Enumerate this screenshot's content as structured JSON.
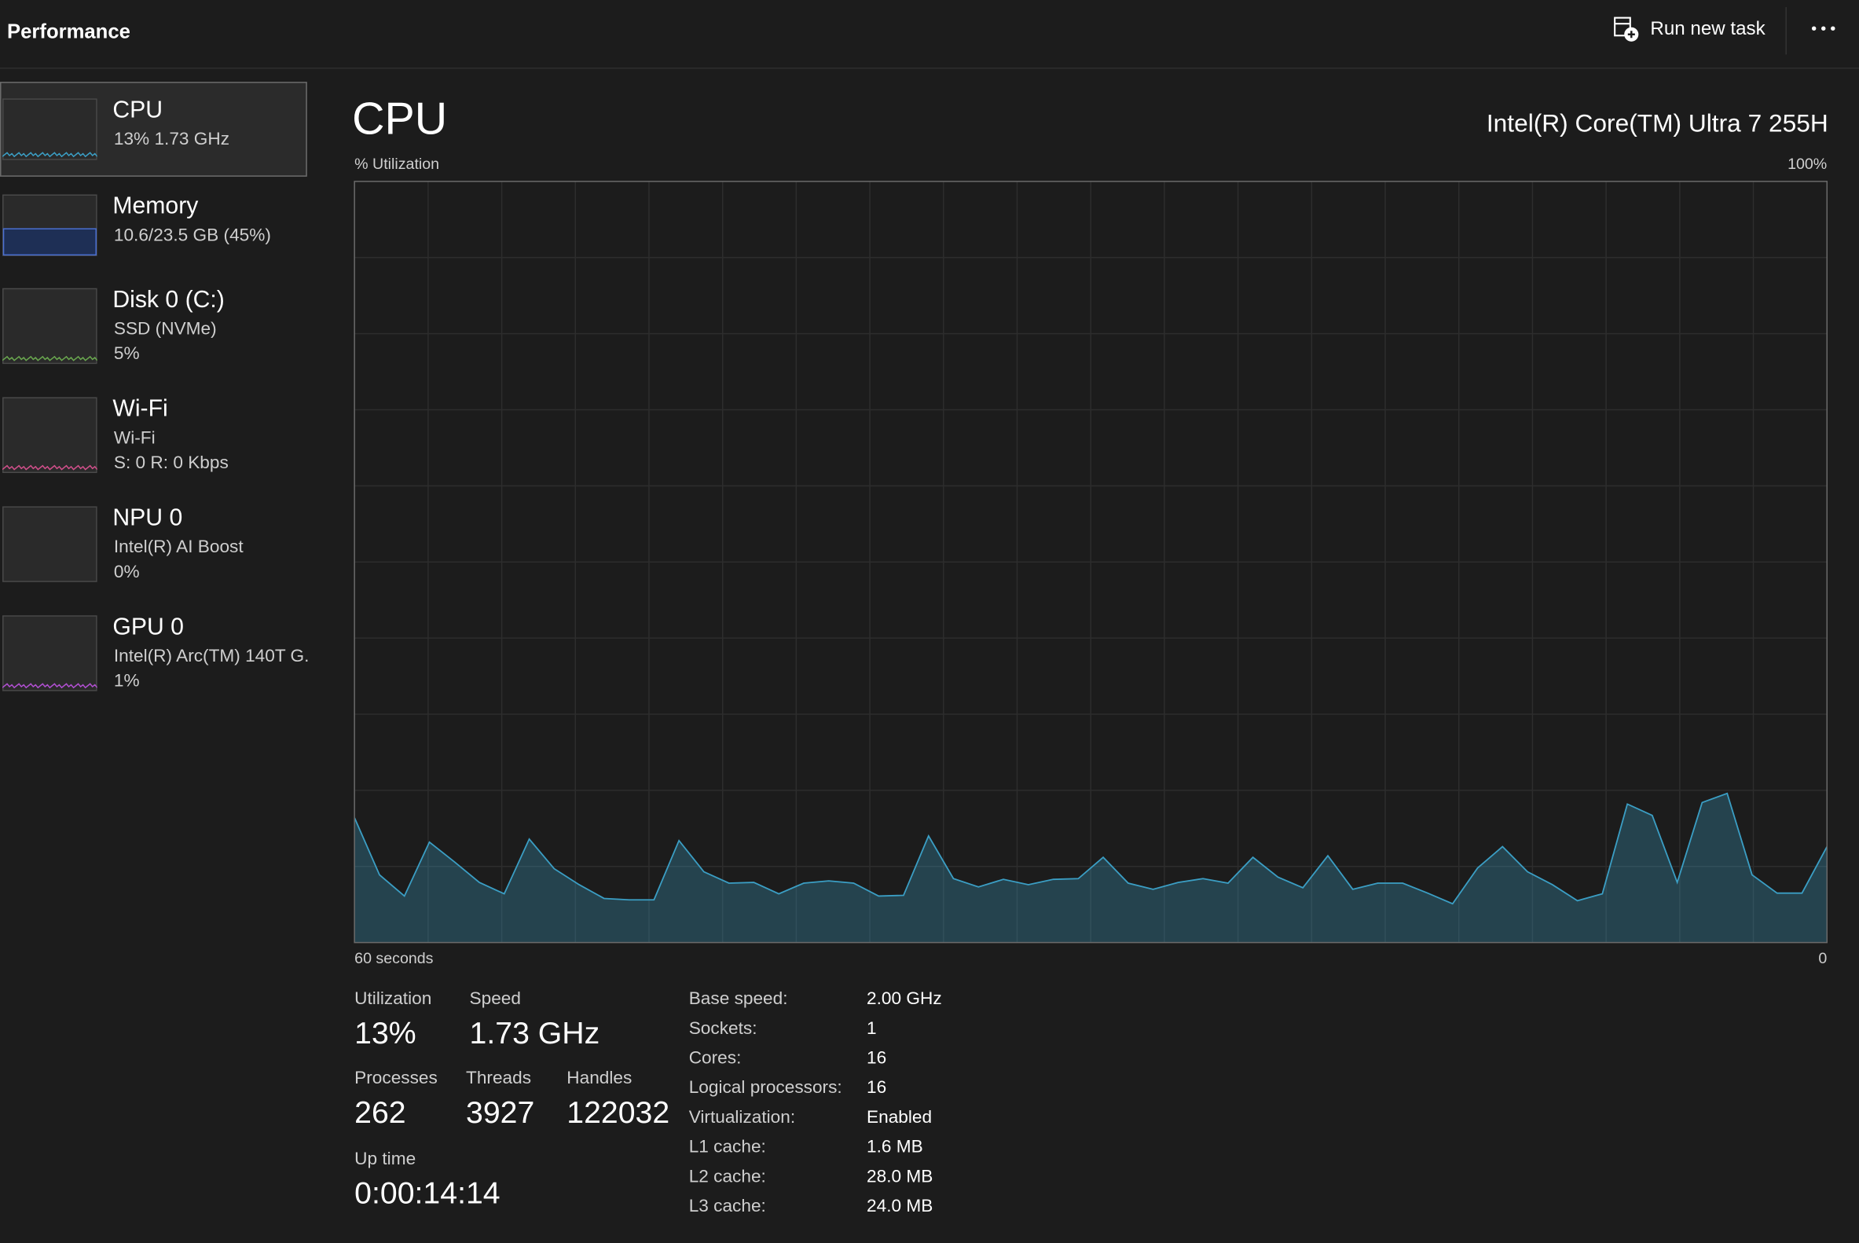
{
  "header": {
    "title": "Performance",
    "run_new_task": "Run new task"
  },
  "sidebar": [
    {
      "name": "CPU",
      "lines": [
        "13%  1.73 GHz"
      ]
    },
    {
      "name": "Memory",
      "lines": [
        "10.6/23.5 GB (45%)"
      ]
    },
    {
      "name": "Disk 0 (C:)",
      "lines": [
        "SSD (NVMe)",
        "5%"
      ]
    },
    {
      "name": "Wi-Fi",
      "lines": [
        "Wi-Fi",
        "S: 0 R: 0 Kbps"
      ]
    },
    {
      "name": "NPU 0",
      "lines": [
        "Intel(R) AI Boost",
        "0%"
      ]
    },
    {
      "name": "GPU 0",
      "lines": [
        "Intel(R) Arc(TM) 140T G.",
        "1%"
      ]
    }
  ],
  "panel": {
    "title": "CPU",
    "model": "Intel(R) Core(TM) Ultra 7 255H"
  },
  "chart_data": {
    "type": "area",
    "ylabel": "% Utilization",
    "color": "#3b9ec4",
    "values": [
      16.4,
      8.9,
      6.1,
      13.2,
      10.6,
      7.9,
      6.4,
      13.6,
      9.7,
      7.6,
      5.8,
      5.6,
      5.6,
      13.4,
      9.3,
      7.8,
      7.9,
      6.4,
      7.8,
      8.1,
      7.8,
      6.1,
      6.2,
      14.0,
      8.4,
      7.3,
      8.3,
      7.6,
      8.3,
      8.4,
      11.2,
      7.8,
      7.0,
      7.9,
      8.4,
      7.8,
      11.2,
      8.6,
      7.2,
      11.4,
      7.0,
      7.8,
      7.8,
      6.5,
      5.1,
      9.8,
      12.6,
      9.3,
      7.6,
      5.5,
      6.4,
      18.2,
      16.7,
      7.9,
      18.4,
      19.6,
      8.9,
      6.5,
      6.5,
      12.6
    ],
    "ylim": [
      0,
      100
    ],
    "yticks": [
      {
        "value": 100,
        "label": "100%"
      }
    ],
    "xlim": [
      60,
      0
    ],
    "xticks": [
      {
        "value": 60,
        "label": "60 seconds"
      },
      0
    ],
    "grid": true
  },
  "stats": [
    [
      {
        "label": "Utilization",
        "value": "13%"
      },
      {
        "label": "Speed",
        "value": "1.73 GHz"
      }
    ],
    [
      {
        "label": "Processes",
        "value": "262"
      },
      {
        "label": "Threads",
        "value": "3927"
      },
      {
        "label": "Handles",
        "value": "122032"
      }
    ],
    [
      {
        "label": "Up time",
        "value": "0:00:14:14"
      }
    ]
  ],
  "specs": [
    [
      "Base speed:",
      "2.00 GHz"
    ],
    [
      "Sockets:",
      "1"
    ],
    [
      "Cores:",
      "16"
    ],
    [
      "Logical processors:",
      "16"
    ],
    [
      "Virtualization:",
      "Enabled"
    ],
    [
      "L1 cache:",
      "1.6 MB"
    ],
    [
      "L2 cache:",
      "28.0 MB"
    ],
    [
      "L3 cache:",
      "24.0 MB"
    ]
  ]
}
